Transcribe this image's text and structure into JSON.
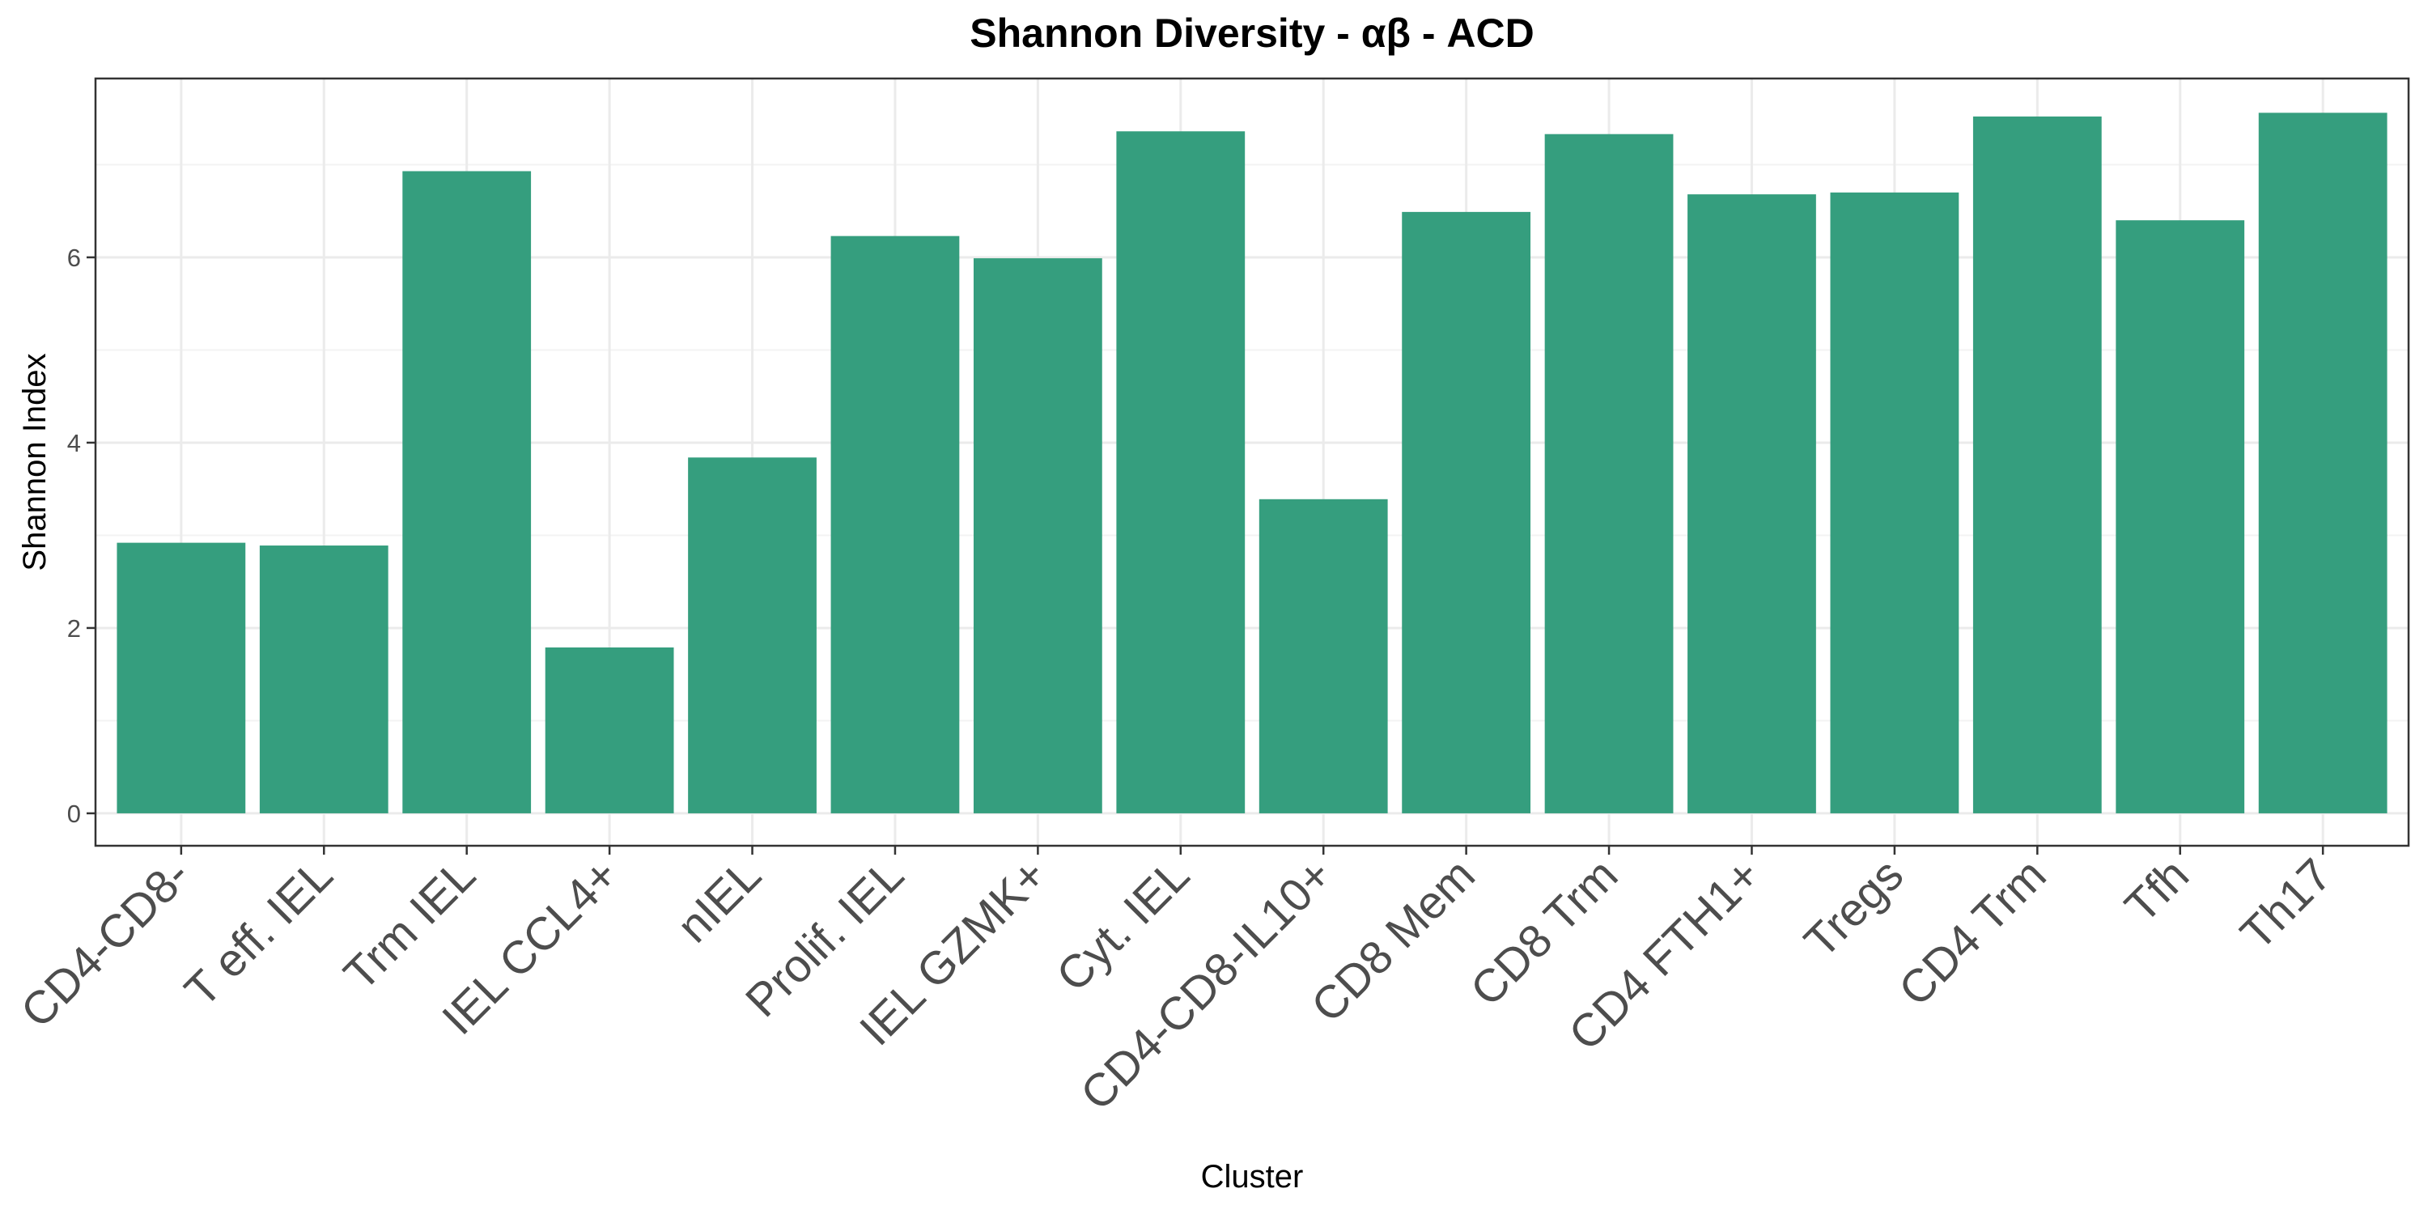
{
  "chart_data": {
    "type": "bar",
    "title": "Shannon Diversity - αβ - ACD",
    "xlabel": "Cluster",
    "ylabel": "Shannon Index",
    "categories": [
      "CD4-CD8-",
      "T eff. IEL",
      "Trm IEL",
      "IEL CCL4+",
      "nIEL",
      "Prolif. IEL",
      "IEL GZMK+",
      "Cyt. IEL",
      "CD4-CD8-IL10+",
      "CD8 Mem",
      "CD8 Trm",
      "CD4 FTH1+",
      "Tregs",
      "CD4 Trm",
      "Tfh",
      "Th17"
    ],
    "values": [
      2.92,
      2.89,
      6.93,
      1.79,
      3.84,
      6.23,
      5.99,
      7.36,
      3.39,
      6.49,
      7.33,
      6.68,
      6.7,
      7.52,
      6.4,
      7.56
    ],
    "yticks": [
      0,
      2,
      4,
      6
    ],
    "ylim": [
      -0.35,
      7.93
    ],
    "bar_color": "#359e7e",
    "grid": true
  }
}
